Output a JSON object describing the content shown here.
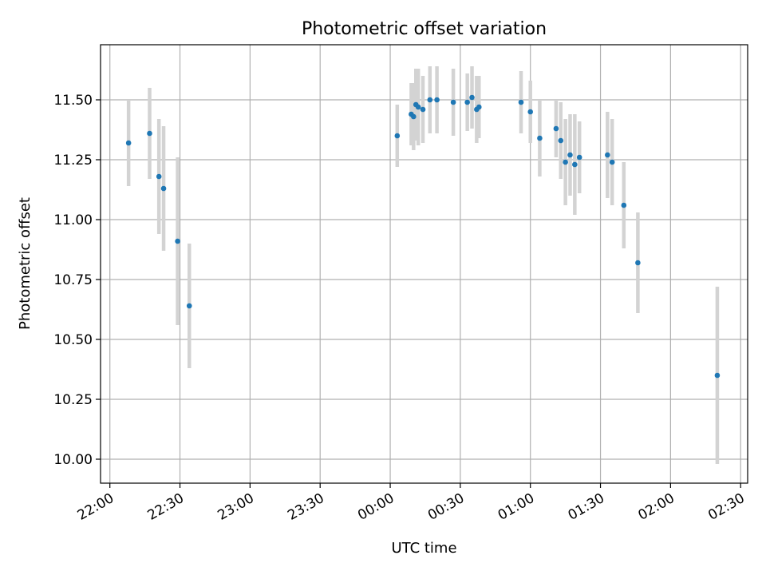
{
  "chart_data": {
    "type": "scatter",
    "title": "Photometric offset variation",
    "xlabel": "UTC time",
    "ylabel": "Photometric offset",
    "x_tick_labels": [
      "22:00",
      "22:30",
      "23:00",
      "23:30",
      "00:00",
      "00:30",
      "01:00",
      "01:30",
      "02:00",
      "02:30"
    ],
    "y_tick_labels": [
      "10.00",
      "10.25",
      "10.50",
      "10.75",
      "11.00",
      "11.25",
      "11.50"
    ],
    "y_ticks": [
      10.0,
      10.25,
      10.5,
      10.75,
      11.0,
      11.25,
      11.5
    ],
    "xlim": [
      "21:56",
      "02:33"
    ],
    "ylim": [
      9.9,
      11.73
    ],
    "grid": true,
    "colors": {
      "point": "#1f77b4",
      "errorbar": "#d3d3d3",
      "grid": "#b0b0b0"
    },
    "series": [
      {
        "error_bars": true,
        "points": [
          {
            "x": "22:08",
            "y": 11.32,
            "yerr": 0.18
          },
          {
            "x": "22:17",
            "y": 11.36,
            "yerr": 0.19
          },
          {
            "x": "22:21",
            "y": 11.18,
            "yerr": 0.24
          },
          {
            "x": "22:23",
            "y": 11.13,
            "yerr": 0.26
          },
          {
            "x": "22:29",
            "y": 10.91,
            "yerr": 0.35
          },
          {
            "x": "22:34",
            "y": 10.64,
            "yerr": 0.26
          },
          {
            "x": "00:03",
            "y": 11.35,
            "yerr": 0.13
          },
          {
            "x": "00:09",
            "y": 11.44,
            "yerr": 0.13
          },
          {
            "x": "00:10",
            "y": 11.43,
            "yerr": 0.14
          },
          {
            "x": "00:11",
            "y": 11.48,
            "yerr": 0.15
          },
          {
            "x": "00:12",
            "y": 11.47,
            "yerr": 0.16
          },
          {
            "x": "00:14",
            "y": 11.46,
            "yerr": 0.14
          },
          {
            "x": "00:17",
            "y": 11.5,
            "yerr": 0.14
          },
          {
            "x": "00:20",
            "y": 11.5,
            "yerr": 0.14
          },
          {
            "x": "00:27",
            "y": 11.49,
            "yerr": 0.14
          },
          {
            "x": "00:33",
            "y": 11.49,
            "yerr": 0.12
          },
          {
            "x": "00:35",
            "y": 11.51,
            "yerr": 0.13
          },
          {
            "x": "00:37",
            "y": 11.46,
            "yerr": 0.14
          },
          {
            "x": "00:38",
            "y": 11.47,
            "yerr": 0.13
          },
          {
            "x": "00:56",
            "y": 11.49,
            "yerr": 0.13
          },
          {
            "x": "01:00",
            "y": 11.45,
            "yerr": 0.13
          },
          {
            "x": "01:04",
            "y": 11.34,
            "yerr": 0.16
          },
          {
            "x": "01:11",
            "y": 11.38,
            "yerr": 0.12
          },
          {
            "x": "01:13",
            "y": 11.33,
            "yerr": 0.16
          },
          {
            "x": "01:15",
            "y": 11.24,
            "yerr": 0.18
          },
          {
            "x": "01:17",
            "y": 11.27,
            "yerr": 0.17
          },
          {
            "x": "01:19",
            "y": 11.23,
            "yerr": 0.21
          },
          {
            "x": "01:21",
            "y": 11.26,
            "yerr": 0.15
          },
          {
            "x": "01:33",
            "y": 11.27,
            "yerr": 0.18
          },
          {
            "x": "01:35",
            "y": 11.24,
            "yerr": 0.18
          },
          {
            "x": "01:40",
            "y": 11.06,
            "yerr": 0.18
          },
          {
            "x": "01:46",
            "y": 10.82,
            "yerr": 0.21
          },
          {
            "x": "02:20",
            "y": 10.35,
            "yerr": 0.37
          }
        ]
      }
    ]
  }
}
